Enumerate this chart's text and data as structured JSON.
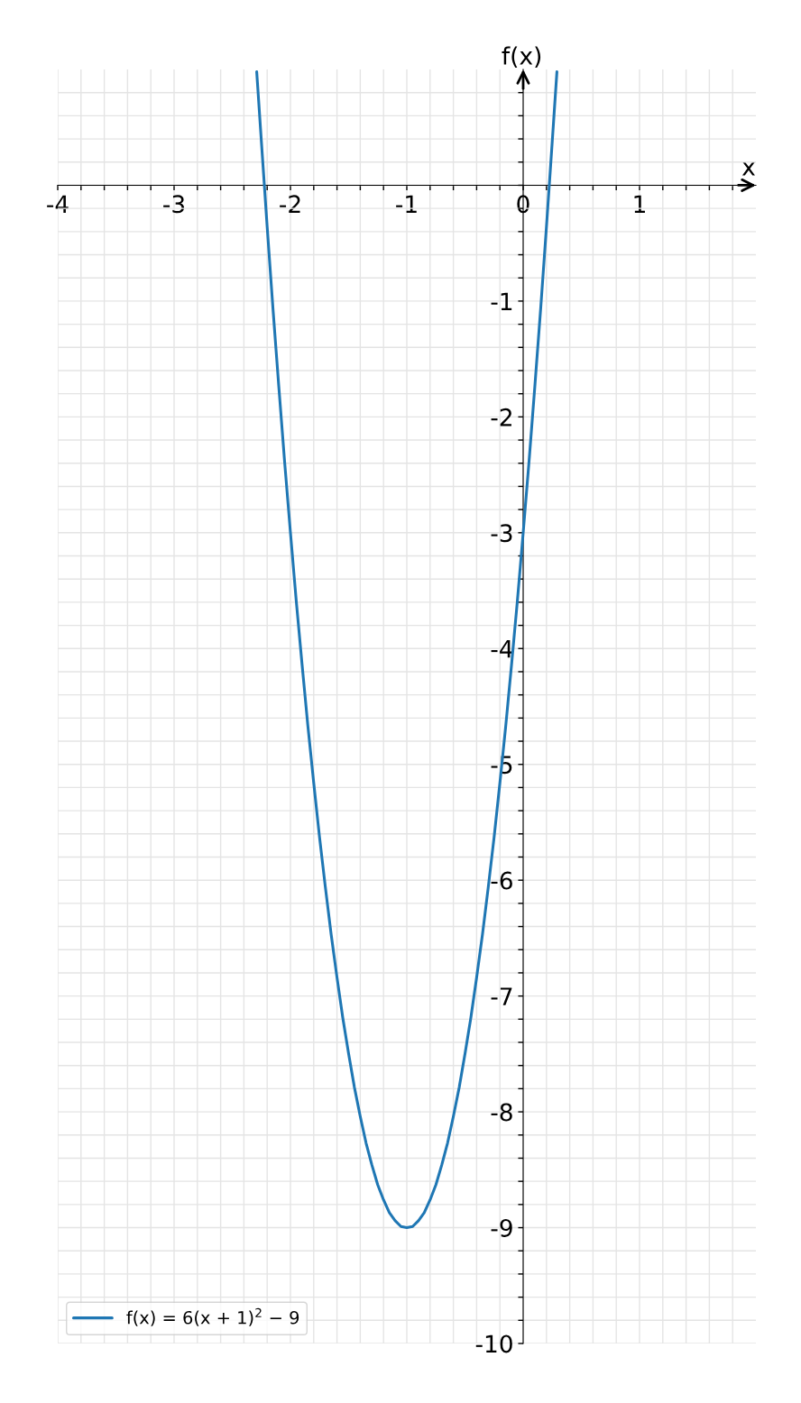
{
  "chart_data": {
    "type": "line",
    "xlabel": "x",
    "ylabel": "f(x)",
    "x": [
      -2.29,
      -2.25,
      -2.2,
      -2.15,
      -2.1,
      -2.05,
      -2.0,
      -1.95,
      -1.9,
      -1.85,
      -1.8,
      -1.75,
      -1.7,
      -1.65,
      -1.6,
      -1.55,
      -1.5,
      -1.45,
      -1.4,
      -1.35,
      -1.3,
      -1.25,
      -1.2,
      -1.15,
      -1.1,
      -1.05,
      -1.0,
      -0.95,
      -0.9,
      -0.85,
      -0.8,
      -0.75,
      -0.7,
      -0.65,
      -0.6,
      -0.55,
      -0.5,
      -0.45,
      -0.4,
      -0.35,
      -0.3,
      -0.25,
      -0.2,
      -0.15,
      -0.1,
      -0.05,
      0.0,
      0.05,
      0.1,
      0.15,
      0.2,
      0.25,
      0.29
    ],
    "series": [
      {
        "name": "f(x) = 6(x + 1)$^{2}$ − 9",
        "color": "#1f77b4",
        "values": [
          0.98,
          0.38,
          -0.36,
          -1.07,
          -1.74,
          -2.39,
          -3.0,
          -3.59,
          -4.14,
          -4.67,
          -5.16,
          -5.63,
          -6.06,
          -6.47,
          -6.84,
          -7.19,
          -7.5,
          -7.79,
          -8.04,
          -8.27,
          -8.46,
          -8.63,
          -8.76,
          -8.87,
          -8.94,
          -8.99,
          -9.0,
          -8.99,
          -8.94,
          -8.87,
          -8.76,
          -8.63,
          -8.46,
          -8.27,
          -8.04,
          -7.79,
          -7.5,
          -7.19,
          -6.84,
          -6.47,
          -6.06,
          -5.63,
          -5.16,
          -4.67,
          -4.14,
          -3.59,
          -3.0,
          -2.39,
          -1.74,
          -1.07,
          -0.36,
          0.38,
          0.98
        ]
      }
    ],
    "xlim": [
      -4,
      2
    ],
    "ylim": [
      -10,
      1
    ],
    "xticks": [
      -4,
      {
        "value": -3.8,
        "label": null
      },
      {
        "value": -3.6,
        "label": null
      },
      {
        "value": -3.4,
        "label": null
      },
      {
        "value": -3.2,
        "label": null
      },
      -3,
      {
        "value": -2.8,
        "label": null
      },
      {
        "value": -2.6,
        "label": null
      },
      {
        "value": -2.4,
        "label": null
      },
      {
        "value": -2.2,
        "label": null
      },
      -2,
      {
        "value": -1.8,
        "label": null
      },
      {
        "value": -1.6,
        "label": null
      },
      {
        "value": -1.4,
        "label": null
      },
      {
        "value": -1.2,
        "label": null
      },
      -1,
      {
        "value": -0.8,
        "label": null
      },
      {
        "value": -0.6,
        "label": null
      },
      {
        "value": -0.4,
        "label": null
      },
      {
        "value": -0.2,
        "label": null
      },
      0,
      {
        "value": 0.2,
        "label": null
      },
      {
        "value": 0.4,
        "label": null
      },
      {
        "value": 0.6,
        "label": null
      },
      {
        "value": 0.8,
        "label": null
      },
      1,
      {
        "value": 1.2,
        "label": null
      },
      {
        "value": 1.4,
        "label": null
      },
      {
        "value": 1.6,
        "label": null
      },
      {
        "value": 1.8,
        "label": null
      }
    ],
    "yticks": [
      -10,
      {
        "value": -9.8,
        "label": null
      },
      {
        "value": -9.6,
        "label": null
      },
      {
        "value": -9.4,
        "label": null
      },
      {
        "value": -9.2,
        "label": null
      },
      -9,
      {
        "value": -8.8,
        "label": null
      },
      {
        "value": -8.6,
        "label": null
      },
      {
        "value": -8.4,
        "label": null
      },
      {
        "value": -8.2,
        "label": null
      },
      -8,
      {
        "value": -7.8,
        "label": null
      },
      {
        "value": -7.6,
        "label": null
      },
      {
        "value": -7.4,
        "label": null
      },
      {
        "value": -7.2,
        "label": null
      },
      -7,
      {
        "value": -6.8,
        "label": null
      },
      {
        "value": -6.6,
        "label": null
      },
      {
        "value": -6.4,
        "label": null
      },
      {
        "value": -6.2,
        "label": null
      },
      -6,
      {
        "value": -5.8,
        "label": null
      },
      {
        "value": -5.6,
        "label": null
      },
      {
        "value": -5.4,
        "label": null
      },
      {
        "value": -5.2,
        "label": null
      },
      -5,
      {
        "value": -4.8,
        "label": null
      },
      {
        "value": -4.6,
        "label": null
      },
      {
        "value": -4.4,
        "label": null
      },
      {
        "value": -4.2,
        "label": null
      },
      -4,
      {
        "value": -3.8,
        "label": null
      },
      {
        "value": -3.6,
        "label": null
      },
      {
        "value": -3.4,
        "label": null
      },
      {
        "value": -3.2,
        "label": null
      },
      -3,
      {
        "value": -2.8,
        "label": null
      },
      {
        "value": -2.6,
        "label": null
      },
      {
        "value": -2.4,
        "label": null
      },
      {
        "value": -2.2,
        "label": null
      },
      -2,
      {
        "value": -1.8,
        "label": null
      },
      {
        "value": -1.6,
        "label": null
      },
      {
        "value": -1.4,
        "label": null
      },
      {
        "value": -1.2,
        "label": null
      },
      -1,
      {
        "value": -0.8,
        "label": null
      },
      {
        "value": -0.6,
        "label": null
      },
      {
        "value": -0.4,
        "label": null
      },
      {
        "value": -0.2,
        "label": null
      },
      {
        "value": 0,
        "label": null
      },
      {
        "value": 0.2,
        "label": null
      },
      {
        "value": 0.4,
        "label": null
      },
      {
        "value": 0.6,
        "label": null
      },
      {
        "value": 0.8,
        "label": null
      }
    ],
    "grid": true,
    "legend": "bottom left"
  }
}
